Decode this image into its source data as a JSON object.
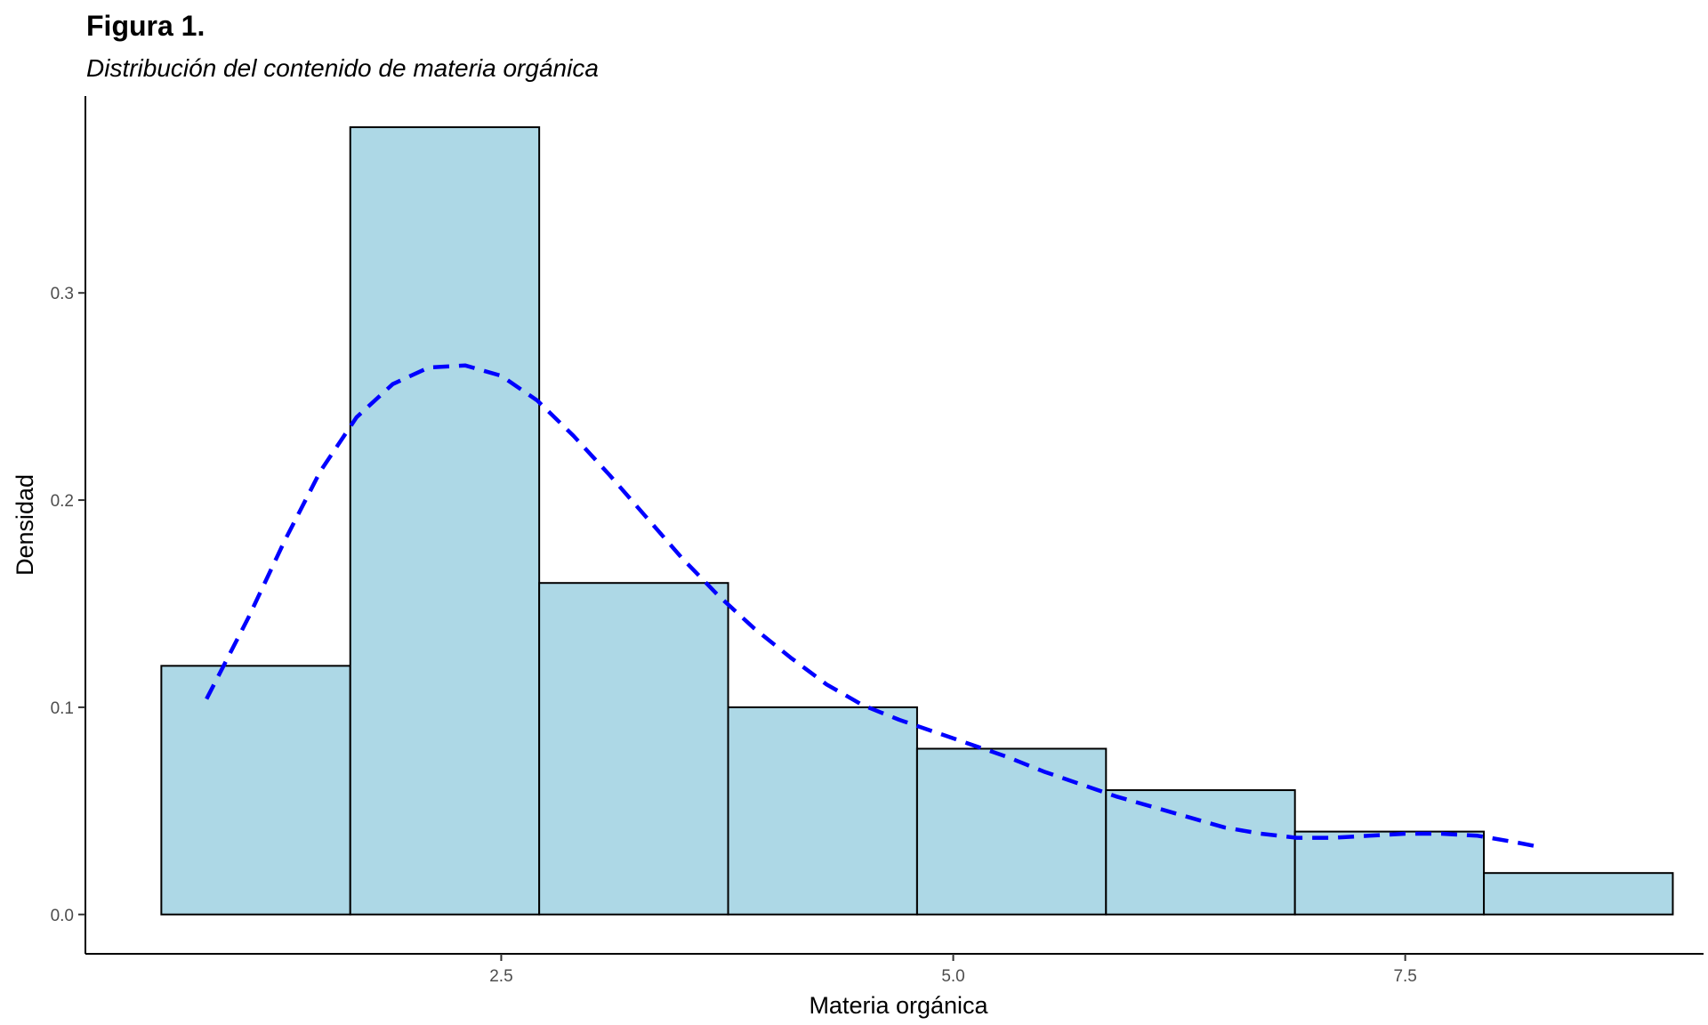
{
  "chart_data": {
    "type": "bar",
    "title": "Figura 1.",
    "subtitle": "Distribución del contenido de materia orgánica",
    "xlabel": "Materia orgánica",
    "ylabel": "Densidad",
    "xlim": [
      0.2,
      9.15
    ],
    "ylim": [
      -0.019,
      0.395
    ],
    "x_ticks": [
      {
        "value": 2.5,
        "label": "2.5"
      },
      {
        "value": 5.0,
        "label": "5.0"
      },
      {
        "value": 7.5,
        "label": "7.5"
      }
    ],
    "y_ticks": [
      {
        "value": 0.0,
        "label": "0.0"
      },
      {
        "value": 0.1,
        "label": "0.1"
      },
      {
        "value": 0.2,
        "label": "0.2"
      },
      {
        "value": 0.3,
        "label": "0.3"
      }
    ],
    "grid": false,
    "histogram": {
      "bin_edges": [
        0.62,
        1.665,
        2.71,
        3.755,
        4.8,
        5.845,
        6.89,
        7.935,
        8.98
      ],
      "density": [
        0.12,
        0.38,
        0.16,
        0.1,
        0.08,
        0.06,
        0.04,
        0.02
      ],
      "fill": "#ADD8E6",
      "stroke": "#000000"
    },
    "density_curve": {
      "style": "dashed",
      "color": "#0000FF",
      "x": [
        0.87,
        1.1,
        1.3,
        1.5,
        1.7,
        1.9,
        2.1,
        2.3,
        2.5,
        2.7,
        2.9,
        3.1,
        3.3,
        3.5,
        3.7,
        3.9,
        4.1,
        4.3,
        4.5,
        4.7,
        4.9,
        5.1,
        5.3,
        5.5,
        5.7,
        5.9,
        6.1,
        6.3,
        6.5,
        6.7,
        6.9,
        7.1,
        7.3,
        7.5,
        7.7,
        7.9,
        8.1,
        8.22
      ],
      "y": [
        0.104,
        0.143,
        0.18,
        0.214,
        0.24,
        0.256,
        0.264,
        0.265,
        0.26,
        0.248,
        0.231,
        0.212,
        0.192,
        0.172,
        0.154,
        0.138,
        0.124,
        0.111,
        0.101,
        0.094,
        0.088,
        0.082,
        0.076,
        0.069,
        0.063,
        0.057,
        0.052,
        0.047,
        0.042,
        0.039,
        0.037,
        0.037,
        0.038,
        0.039,
        0.039,
        0.038,
        0.035,
        0.033
      ]
    }
  }
}
